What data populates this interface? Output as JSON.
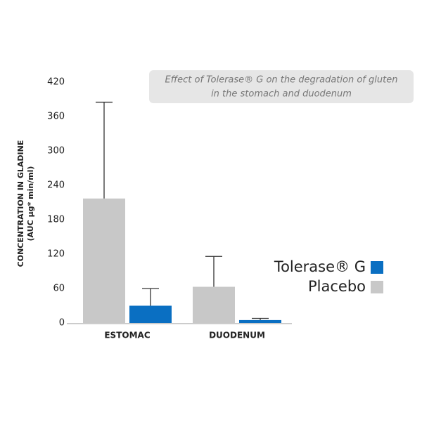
{
  "chart_data": {
    "type": "bar",
    "title": [
      "Effect of Tolerase® G on the degradation of gluten",
      "in the stomach and duodenum"
    ],
    "y_label": [
      "CONCENTRATION IN GLADINE",
      "(AUC µg* min/ml)"
    ],
    "categories": [
      "ESTOMAC",
      "DUODENUM"
    ],
    "series": [
      {
        "name": "Placebo",
        "color": "#c8c8c8",
        "values": [
          217,
          63
        ],
        "errors": [
          168,
          53
        ]
      },
      {
        "name": "Tolerase® G",
        "color": "#0a6fc2",
        "values": [
          30,
          5
        ],
        "errors": [
          30,
          3
        ]
      }
    ],
    "ylim": [
      0,
      420
    ],
    "yticks": [
      0,
      60,
      120,
      180,
      240,
      300,
      360,
      420
    ],
    "grid": false
  }
}
